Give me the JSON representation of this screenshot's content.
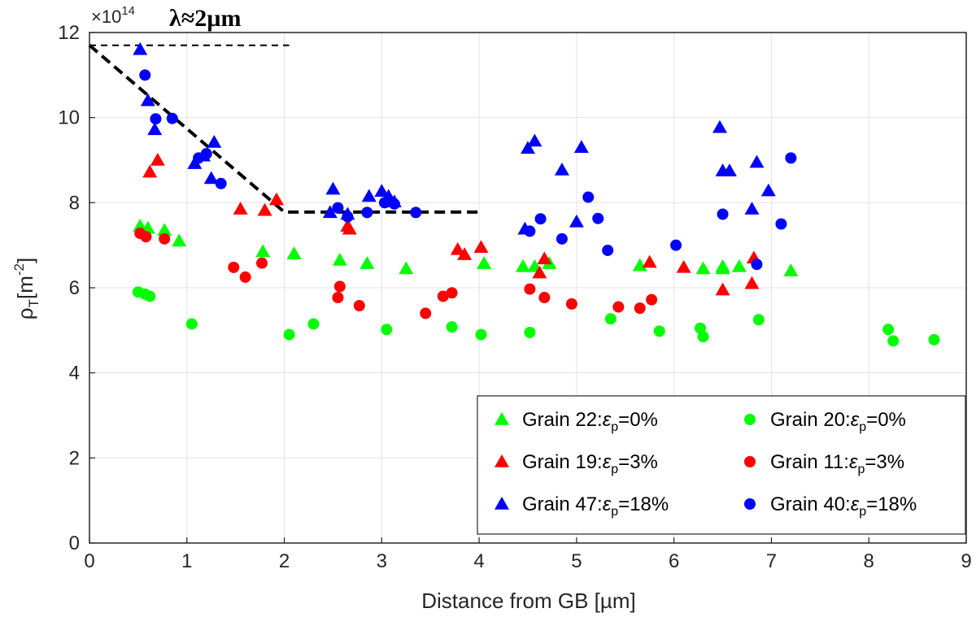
{
  "chart_data": {
    "type": "scatter",
    "title": "",
    "xlabel": "Distance from GB [µm]",
    "ylabel": {
      "base": "ρ",
      "sub": "T",
      "unit": "[m",
      "exp": "-2",
      "close": "]"
    },
    "xlim": [
      0,
      9
    ],
    "ylim": [
      0,
      12
    ],
    "xticks": [
      "0",
      "1",
      "2",
      "3",
      "4",
      "5",
      "6",
      "7",
      "8",
      "9"
    ],
    "yticks": [
      "0",
      "2",
      "4",
      "6",
      "8",
      "10",
      "12"
    ],
    "y_multiplier": {
      "base": "×10",
      "exp": "14"
    },
    "grid": true,
    "legend_position": "bottom-right",
    "annotation": "λ≈2µm",
    "series": [
      {
        "name": "Grain 22:εp=0%",
        "label": {
          "pre": "Grain 22:",
          "eps": "ε",
          "sub": "p",
          "post": "=0%"
        },
        "marker": "triangle",
        "color": "#00ff00",
        "points": [
          [
            0.52,
            7.45
          ],
          [
            0.6,
            7.4
          ],
          [
            0.77,
            7.35
          ],
          [
            0.92,
            7.1
          ],
          [
            1.78,
            6.85
          ],
          [
            2.1,
            6.8
          ],
          [
            2.57,
            6.65
          ],
          [
            2.85,
            6.57
          ],
          [
            3.25,
            6.45
          ],
          [
            4.05,
            6.57
          ],
          [
            4.45,
            6.5
          ],
          [
            4.57,
            6.5
          ],
          [
            4.72,
            6.57
          ],
          [
            5.65,
            6.52
          ],
          [
            6.3,
            6.45
          ],
          [
            6.5,
            6.45
          ],
          [
            6.5,
            6.5
          ],
          [
            6.67,
            6.5
          ],
          [
            7.2,
            6.4
          ]
        ]
      },
      {
        "name": "Grain 20:εp=0%",
        "label": {
          "pre": "Grain 20:",
          "eps": "ε",
          "sub": "p",
          "post": "=0%"
        },
        "marker": "circle",
        "color": "#00ff00",
        "points": [
          [
            0.5,
            5.9
          ],
          [
            0.57,
            5.85
          ],
          [
            0.62,
            5.8
          ],
          [
            1.05,
            5.15
          ],
          [
            2.05,
            4.9
          ],
          [
            2.3,
            5.15
          ],
          [
            3.05,
            5.02
          ],
          [
            3.72,
            5.08
          ],
          [
            4.02,
            4.9
          ],
          [
            4.52,
            4.95
          ],
          [
            5.35,
            5.27
          ],
          [
            5.85,
            4.98
          ],
          [
            6.27,
            5.05
          ],
          [
            6.3,
            4.85
          ],
          [
            6.87,
            5.25
          ],
          [
            8.2,
            5.02
          ],
          [
            8.25,
            4.75
          ],
          [
            8.67,
            4.78
          ]
        ]
      },
      {
        "name": "Grain 19:εp=3%",
        "label": {
          "pre": "Grain 19:",
          "eps": "ε",
          "sub": "p",
          "post": "=3%"
        },
        "marker": "triangle",
        "color": "#ff0000",
        "points": [
          [
            0.62,
            8.72
          ],
          [
            0.7,
            9.0
          ],
          [
            1.55,
            7.85
          ],
          [
            1.8,
            7.82
          ],
          [
            1.92,
            8.07
          ],
          [
            2.65,
            7.45
          ],
          [
            2.67,
            7.38
          ],
          [
            3.78,
            6.9
          ],
          [
            3.85,
            6.78
          ],
          [
            4.02,
            6.95
          ],
          [
            4.62,
            6.35
          ],
          [
            4.67,
            6.68
          ],
          [
            5.75,
            6.6
          ],
          [
            6.1,
            6.48
          ],
          [
            6.5,
            5.95
          ],
          [
            6.8,
            6.1
          ],
          [
            6.82,
            6.7
          ]
        ]
      },
      {
        "name": "Grain 11:εp=3%",
        "label": {
          "pre": "Grain 11:",
          "eps": "ε",
          "sub": "p",
          "post": "=3%"
        },
        "marker": "circle",
        "color": "#ff0000",
        "points": [
          [
            0.52,
            7.28
          ],
          [
            0.58,
            7.2
          ],
          [
            0.77,
            7.15
          ],
          [
            1.48,
            6.48
          ],
          [
            1.6,
            6.25
          ],
          [
            1.77,
            6.58
          ],
          [
            2.55,
            5.77
          ],
          [
            2.57,
            6.03
          ],
          [
            2.77,
            5.58
          ],
          [
            3.45,
            5.4
          ],
          [
            3.63,
            5.8
          ],
          [
            3.72,
            5.88
          ],
          [
            4.52,
            5.97
          ],
          [
            4.67,
            5.77
          ],
          [
            4.95,
            5.62
          ],
          [
            5.43,
            5.55
          ],
          [
            5.65,
            5.52
          ],
          [
            5.77,
            5.72
          ]
        ]
      },
      {
        "name": "Grain 47:εp=18%",
        "label": {
          "pre": "Grain 47:",
          "eps": "ε",
          "sub": "p",
          "post": "=18%"
        },
        "marker": "triangle",
        "color": "#0000ff",
        "points": [
          [
            0.52,
            11.6
          ],
          [
            0.6,
            10.4
          ],
          [
            0.67,
            9.72
          ],
          [
            1.08,
            8.92
          ],
          [
            1.17,
            9.1
          ],
          [
            1.25,
            8.57
          ],
          [
            1.28,
            9.42
          ],
          [
            2.47,
            7.77
          ],
          [
            2.5,
            8.32
          ],
          [
            2.65,
            7.73
          ],
          [
            2.87,
            8.15
          ],
          [
            3.0,
            8.27
          ],
          [
            3.07,
            8.15
          ],
          [
            3.13,
            8.02
          ],
          [
            4.47,
            7.38
          ],
          [
            4.5,
            9.28
          ],
          [
            4.57,
            9.45
          ],
          [
            4.85,
            8.77
          ],
          [
            5.0,
            7.55
          ],
          [
            5.05,
            9.3
          ],
          [
            6.47,
            9.77
          ],
          [
            6.5,
            8.75
          ],
          [
            6.57,
            8.75
          ],
          [
            6.8,
            7.85
          ],
          [
            6.85,
            8.95
          ],
          [
            6.97,
            8.28
          ]
        ]
      },
      {
        "name": "Grain 40:εp=18%",
        "label": {
          "pre": "Grain 40:",
          "eps": "ε",
          "sub": "p",
          "post": "=18%"
        },
        "marker": "circle",
        "color": "#0000ff",
        "points": [
          [
            0.57,
            11.0
          ],
          [
            0.68,
            9.97
          ],
          [
            0.85,
            9.98
          ],
          [
            1.12,
            9.05
          ],
          [
            1.2,
            9.15
          ],
          [
            1.35,
            8.45
          ],
          [
            2.55,
            7.88
          ],
          [
            2.65,
            7.67
          ],
          [
            2.85,
            7.77
          ],
          [
            3.03,
            8.0
          ],
          [
            3.13,
            7.97
          ],
          [
            3.35,
            7.77
          ],
          [
            4.52,
            7.33
          ],
          [
            4.63,
            7.62
          ],
          [
            4.85,
            7.15
          ],
          [
            5.12,
            8.13
          ],
          [
            5.22,
            7.63
          ],
          [
            5.32,
            6.88
          ],
          [
            6.02,
            7.0
          ],
          [
            6.5,
            7.73
          ],
          [
            6.85,
            6.55
          ],
          [
            7.1,
            7.5
          ],
          [
            7.2,
            9.05
          ]
        ]
      }
    ],
    "lines": [
      {
        "style": "dashed",
        "weight": "thick",
        "points": [
          [
            0,
            11.7
          ],
          [
            2,
            7.78
          ],
          [
            4.02,
            7.78
          ]
        ]
      },
      {
        "style": "dashed",
        "weight": "thin",
        "points": [
          [
            0,
            11.7
          ],
          [
            2.05,
            11.7
          ]
        ]
      }
    ]
  }
}
